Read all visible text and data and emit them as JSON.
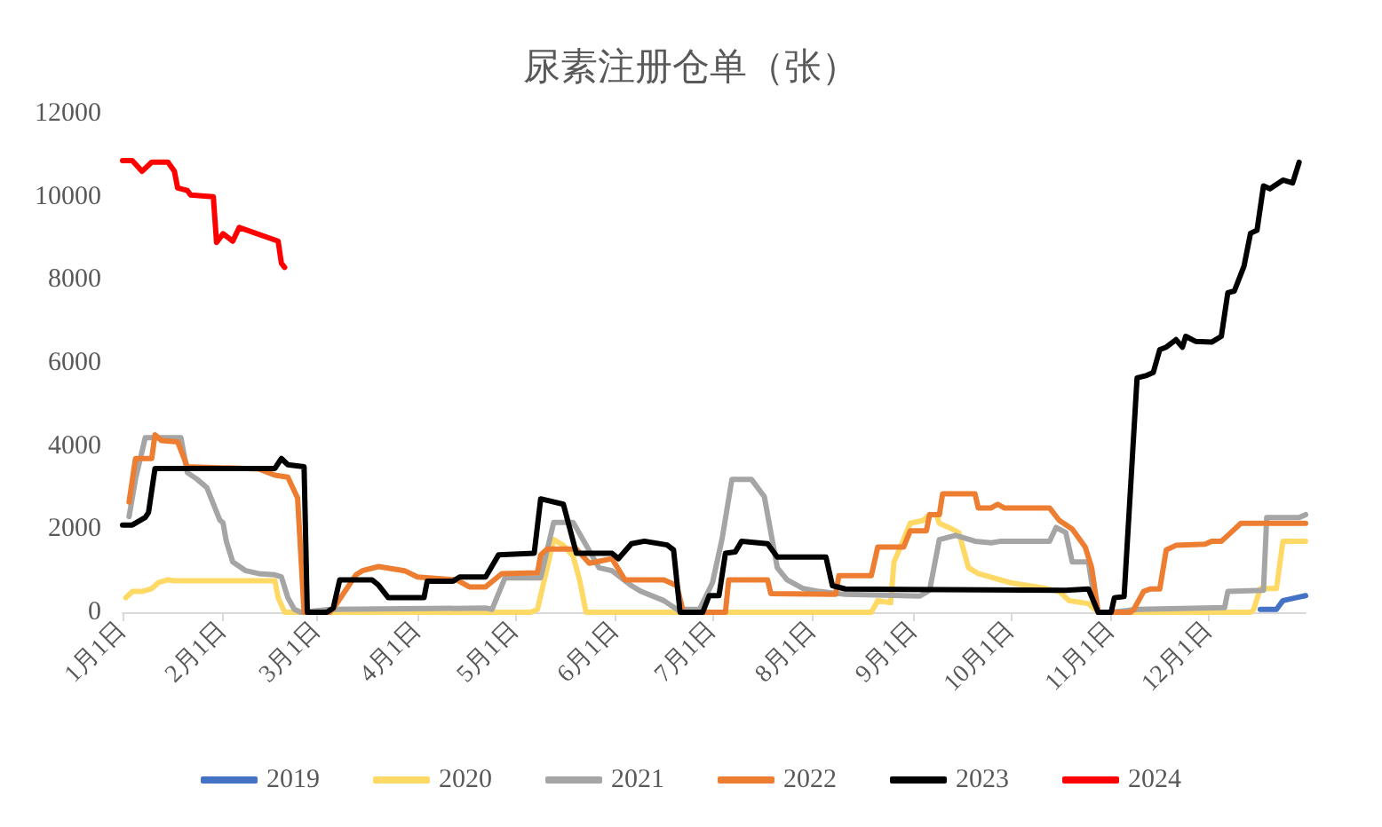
{
  "chart_data": {
    "type": "line",
    "title": "尿素注册仓单（张）",
    "xlim": [
      "--01-01",
      "--12-31"
    ],
    "xticks": [
      {
        "value": "--01-01",
        "label": "1月1日"
      },
      {
        "value": "--02-01",
        "label": "2月1日"
      },
      {
        "value": "--03-01",
        "label": "3月1日"
      },
      {
        "value": "--04-01",
        "label": "4月1日"
      },
      {
        "value": "--05-01",
        "label": "5月1日"
      },
      {
        "value": "--06-01",
        "label": "6月1日"
      },
      {
        "value": "--07-01",
        "label": "7月1日"
      },
      {
        "value": "--08-01",
        "label": "8月1日"
      },
      {
        "value": "--09-01",
        "label": "9月1日"
      },
      {
        "value": "--10-01",
        "label": "10月1日"
      },
      {
        "value": "--11-01",
        "label": "11月1日"
      },
      {
        "value": "--12-01",
        "label": "12月1日"
      }
    ],
    "ylim": [
      0,
      12000
    ],
    "yticks": [
      0,
      2000,
      4000,
      6000,
      8000,
      10000,
      12000
    ],
    "grid": false,
    "legend": "bottom",
    "marker": "none",
    "line_style": "solid",
    "series": [
      {
        "name": "2019",
        "color": "#4472c4",
        "x": [
          "--12-17",
          "--12-22",
          "--12-24",
          "--12-28",
          "--12-31"
        ],
        "values": [
          70,
          70,
          280,
          350,
          400
        ]
      },
      {
        "name": "2020",
        "color": "#ffd966",
        "x": [
          "--01-02",
          "--01-04",
          "--01-07",
          "--01-10",
          "--01-12",
          "--01-15",
          "--01-17",
          "--02-17",
          "--02-18",
          "--02-20",
          "--05-06",
          "--05-08",
          "--05-11",
          "--05-13",
          "--05-16",
          "--05-19",
          "--05-21",
          "--05-23",
          "--08-19",
          "--08-21",
          "--08-25",
          "--08-26",
          "--08-28",
          "--08-31",
          "--09-04",
          "--09-06",
          "--09-08",
          "--09-09",
          "--09-13",
          "--09-15",
          "--09-18",
          "--09-21",
          "--10-01",
          "--10-12",
          "--10-16",
          "--10-19",
          "--10-25",
          "--10-28",
          "--12-14",
          "--12-15",
          "--12-17",
          "--12-22",
          "--12-24",
          "--12-31"
        ],
        "values": [
          350,
          500,
          500,
          570,
          710,
          780,
          760,
          760,
          350,
          0,
          0,
          70,
          1070,
          1750,
          1610,
          1350,
          780,
          0,
          0,
          280,
          230,
          1210,
          1570,
          2140,
          2210,
          2350,
          2350,
          2140,
          2000,
          1920,
          1070,
          930,
          710,
          570,
          500,
          280,
          210,
          0,
          0,
          70,
          570,
          570,
          1710,
          1710
        ]
      },
      {
        "name": "2021",
        "color": "#a5a5a5",
        "x": [
          "--01-03",
          "--01-05",
          "--01-08",
          "--01-19",
          "--01-21",
          "--01-24",
          "--01-27",
          "--01-31",
          "--02-01",
          "--02-02",
          "--02-04",
          "--02-08",
          "--02-12",
          "--02-17",
          "--02-19",
          "--02-21",
          "--02-23",
          "--02-25",
          "--03-05",
          "--04-22",
          "--04-24",
          "--04-28",
          "--05-09",
          "--05-13",
          "--05-19",
          "--05-23",
          "--05-27",
          "--05-31",
          "--06-06",
          "--06-09",
          "--06-16",
          "--06-20",
          "--06-27",
          "--07-01",
          "--07-04",
          "--07-07",
          "--07-13",
          "--07-17",
          "--07-21",
          "--07-24",
          "--07-29",
          "--08-03",
          "--08-11",
          "--09-03",
          "--09-06",
          "--09-09",
          "--09-14",
          "--09-20",
          "--09-25",
          "--09-28",
          "--10-13",
          "--10-15",
          "--10-18",
          "--10-20",
          "--10-25",
          "--10-26",
          "--10-28",
          "--11-01",
          "--11-09",
          "--12-06",
          "--12-07",
          "--12-18",
          "--12-19",
          "--12-29",
          "--12-31"
        ],
        "values": [
          2300,
          3210,
          4200,
          4200,
          3360,
          3200,
          3000,
          2220,
          2150,
          1710,
          1210,
          1000,
          930,
          900,
          850,
          350,
          70,
          0,
          70,
          100,
          70,
          830,
          830,
          2160,
          2160,
          1620,
          1070,
          1000,
          640,
          500,
          280,
          70,
          70,
          710,
          1780,
          3200,
          3200,
          2780,
          1070,
          780,
          570,
          500,
          430,
          390,
          530,
          1750,
          1850,
          1710,
          1670,
          1710,
          1710,
          2040,
          1920,
          1210,
          1210,
          710,
          0,
          0,
          70,
          110,
          500,
          530,
          2280,
          2280,
          2350
        ]
      },
      {
        "name": "2022",
        "color": "#ed7d31",
        "x": [
          "--01-03",
          "--01-05",
          "--01-10",
          "--01-11",
          "--01-13",
          "--01-18",
          "--01-21",
          "--02-12",
          "--02-17",
          "--02-21",
          "--02-24",
          "--02-26",
          "--03-05",
          "--03-07",
          "--03-13",
          "--03-15",
          "--03-20",
          "--03-28",
          "--04-01",
          "--04-13",
          "--04-17",
          "--04-22",
          "--04-27",
          "--05-08",
          "--05-09",
          "--05-11",
          "--05-20",
          "--05-24",
          "--05-31",
          "--06-04",
          "--06-16",
          "--06-20",
          "--06-22",
          "--07-05",
          "--07-06",
          "--07-18",
          "--07-19",
          "--08-08",
          "--08-09",
          "--08-19",
          "--08-21",
          "--08-29",
          "--08-31",
          "--09-05",
          "--09-06",
          "--09-09",
          "--09-10",
          "--09-20",
          "--09-21",
          "--09-25",
          "--09-27",
          "--09-29",
          "--10-13",
          "--10-16",
          "--10-20",
          "--10-24",
          "--10-26",
          "--10-28",
          "--11-07",
          "--11-08",
          "--11-11",
          "--11-13",
          "--11-16",
          "--11-18",
          "--11-21",
          "--11-30",
          "--12-02",
          "--12-05",
          "--12-07",
          "--12-11",
          "--12-31"
        ],
        "values": [
          2650,
          3700,
          3700,
          4270,
          4130,
          4100,
          3500,
          3450,
          3300,
          3250,
          2750,
          0,
          0,
          200,
          900,
          1000,
          1100,
          1000,
          850,
          780,
          610,
          610,
          930,
          950,
          1380,
          1520,
          1520,
          1180,
          1290,
          780,
          780,
          640,
          0,
          0,
          780,
          780,
          450,
          430,
          880,
          880,
          1570,
          1570,
          1960,
          1960,
          2350,
          2350,
          2850,
          2850,
          2510,
          2510,
          2600,
          2510,
          2510,
          2210,
          2000,
          1570,
          1070,
          0,
          0,
          70,
          500,
          560,
          560,
          1500,
          1610,
          1640,
          1710,
          1710,
          1850,
          2140,
          2140
        ]
      },
      {
        "name": "2023",
        "color": "#000000",
        "x": [
          "--01-01",
          "--01-04",
          "--01-08",
          "--01-09",
          "--01-11",
          "--02-17",
          "--02-19",
          "--02-21",
          "--02-26",
          "--02-27",
          "--03-04",
          "--03-06",
          "--03-08",
          "--03-18",
          "--03-20",
          "--03-23",
          "--04-03",
          "--04-04",
          "--04-12",
          "--04-14",
          "--04-22",
          "--04-26",
          "--05-07",
          "--05-09",
          "--05-16",
          "--05-20",
          "--05-31",
          "--06-02",
          "--06-06",
          "--06-10",
          "--06-17",
          "--06-19",
          "--06-21",
          "--06-28",
          "--06-30",
          "--07-03",
          "--07-05",
          "--07-08",
          "--07-10",
          "--07-18",
          "--07-21",
          "--08-05",
          "--08-07",
          "--08-11",
          "--10-18",
          "--10-25",
          "--10-28",
          "--11-01",
          "--11-02",
          "--11-05",
          "--11-09",
          "--11-12",
          "--11-14",
          "--11-16",
          "--11-18",
          "--11-21",
          "--11-23",
          "--11-24",
          "--11-27",
          "--12-02",
          "--12-05",
          "--12-07",
          "--12-09",
          "--12-12",
          "--12-14",
          "--12-16",
          "--12-18",
          "--12-20",
          "--12-24",
          "--12-27",
          "--12-29"
        ],
        "values": [
          2100,
          2100,
          2280,
          2400,
          3460,
          3460,
          3700,
          3550,
          3500,
          0,
          0,
          100,
          780,
          780,
          650,
          350,
          350,
          750,
          750,
          850,
          850,
          1380,
          1420,
          2730,
          2600,
          1420,
          1420,
          1290,
          1650,
          1710,
          1620,
          1500,
          0,
          0,
          400,
          400,
          1420,
          1450,
          1710,
          1650,
          1330,
          1330,
          640,
          560,
          530,
          560,
          0,
          0,
          350,
          380,
          5640,
          5700,
          5770,
          6320,
          6380,
          6560,
          6380,
          6640,
          6520,
          6500,
          6640,
          7690,
          7730,
          8330,
          9120,
          9190,
          10260,
          10190,
          10400,
          10330,
          10830
        ]
      },
      {
        "name": "2024",
        "color": "#ff0000",
        "x": [
          "--01-01",
          "--01-04",
          "--01-07",
          "--01-10",
          "--01-15",
          "--01-17",
          "--01-18",
          "--01-21",
          "--01-22",
          "--01-29",
          "--01-30",
          "--02-01",
          "--02-04",
          "--02-06",
          "--02-18",
          "--02-19",
          "--02-20"
        ],
        "values": [
          10870,
          10870,
          10610,
          10830,
          10830,
          10610,
          10210,
          10150,
          10040,
          10000,
          8900,
          9110,
          8930,
          9260,
          8930,
          8400,
          8300
        ]
      }
    ]
  }
}
